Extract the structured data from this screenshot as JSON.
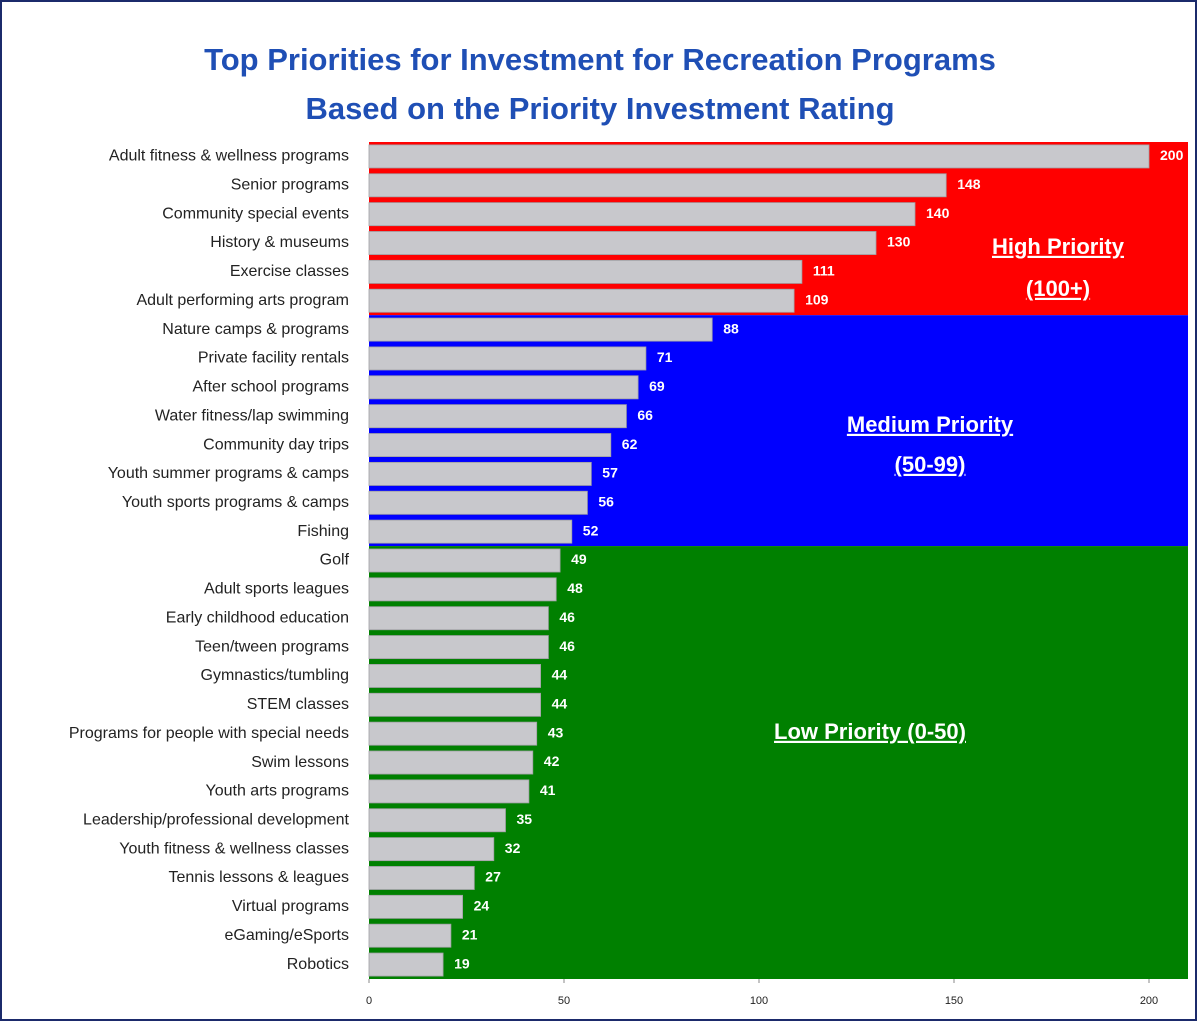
{
  "chart_data": {
    "type": "bar",
    "orientation": "horizontal",
    "title": [
      "Top Priorities for Investment for Recreation Programs",
      "Based on the Priority Investment Rating"
    ],
    "categories": [
      "Adult fitness & wellness programs",
      "Senior programs",
      "Community special events",
      "History & museums",
      "Exercise classes",
      "Adult performing arts program",
      "Nature camps & programs",
      "Private facility rentals",
      "After school programs",
      "Water fitness/lap swimming",
      "Community day trips",
      "Youth summer programs & camps",
      "Youth sports programs & camps",
      "Fishing",
      "Golf",
      "Adult sports leagues",
      "Early childhood education",
      "Teen/tween programs",
      "Gymnastics/tumbling",
      "STEM classes",
      "Programs for people with special needs",
      "Swim lessons",
      "Youth arts programs",
      "Leadership/professional development",
      "Youth fitness & wellness classes",
      "Tennis lessons & leagues",
      "Virtual programs",
      "eGaming/eSports",
      "Robotics"
    ],
    "values": [
      200,
      148,
      140,
      130,
      111,
      109,
      88,
      71,
      69,
      66,
      62,
      57,
      56,
      52,
      49,
      48,
      46,
      46,
      44,
      44,
      43,
      42,
      41,
      35,
      32,
      27,
      24,
      21,
      19
    ],
    "color": "#c8c8cc",
    "xlim": [
      0,
      210
    ],
    "xticks": [
      0,
      50,
      100,
      150,
      200
    ],
    "zones": [
      {
        "label": [
          "High Priority",
          "(100+)"
        ],
        "min": 100,
        "color": "#ff0000"
      },
      {
        "label": [
          "Medium Priority",
          "(50-99)"
        ],
        "min": 50,
        "color": "#0000ff"
      },
      {
        "label": [
          "Low Priority (0-50)"
        ],
        "min": 0,
        "color": "#008000"
      }
    ]
  }
}
